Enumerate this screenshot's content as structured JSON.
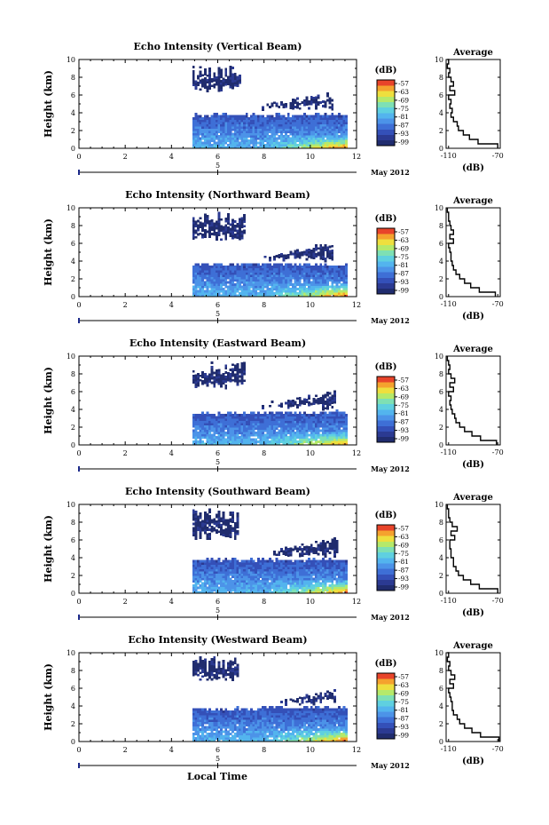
{
  "colors": {
    "colormap": [
      "#202c6e",
      "#2b3a92",
      "#3450b8",
      "#3e6fd6",
      "#4c93e8",
      "#53b4ee",
      "#5fd0e0",
      "#7ee0b4",
      "#b5e96a",
      "#eedf3e",
      "#f5a22e",
      "#e8442a"
    ],
    "background": "#ffffff",
    "axes": "#000000"
  },
  "figure": {
    "month_label": "May 2012",
    "xlabel": "Local Time"
  },
  "chart_data": [
    {
      "type": "heatmap",
      "title": "Echo Intensity (Vertical Beam)",
      "ylabel": "Height (km)",
      "xlim": [
        0,
        12
      ],
      "ylim": [
        0,
        10
      ],
      "x_ticks": [
        "0",
        "2",
        "4",
        "6",
        "8",
        "10",
        "12"
      ],
      "y_ticks": [
        "0",
        "2",
        "4",
        "6",
        "8",
        "10"
      ],
      "date_tick": "5",
      "data_start_time": 4.9,
      "data_end_time": 11.6,
      "colorbar": {
        "unit": "(dB)",
        "ticks": [
          "-57",
          "-63",
          "-69",
          "-75",
          "-81",
          "-87",
          "-93",
          "-99"
        ]
      },
      "layers": [
        {
          "t_start": 4.9,
          "t_end": 11.6,
          "z_bottom": 0,
          "z_top_start": 3.6,
          "z_top_end": 3.7,
          "level_low": 2,
          "level_high": 9
        },
        {
          "t_start": 4.9,
          "t_end": 7.0,
          "z_bottom": 6.3,
          "z_top": 9.3,
          "level_low": 0,
          "level_high": 1
        },
        {
          "t_start": 7.5,
          "t_end": 11.0,
          "z_bottom": 4.2,
          "z_top": 6.2,
          "level_low": 0,
          "level_high": 1
        }
      ],
      "average": {
        "title": "Average",
        "xlabel": "(dB)",
        "xlim": [
          -112,
          -68
        ],
        "x_ticks": [
          "-110",
          "-70"
        ],
        "heights": [
          0,
          0.5,
          1,
          1.5,
          2,
          2.5,
          3,
          3.5,
          4,
          4.5,
          5,
          5.5,
          6,
          6.5,
          7,
          7.5,
          8,
          8.5,
          9,
          9.5,
          10
        ],
        "values": [
          -70,
          -86,
          -93,
          -98,
          -102,
          -103,
          -106,
          -108,
          -107,
          -109,
          -108,
          -110,
          -105,
          -109,
          -106,
          -108,
          -110,
          -109,
          -111,
          -110,
          -111
        ]
      }
    },
    {
      "type": "heatmap",
      "title": "Echo Intensity (Northward Beam)",
      "ylabel": "Height (km)",
      "xlim": [
        0,
        12
      ],
      "ylim": [
        0,
        10
      ],
      "x_ticks": [
        "0",
        "2",
        "4",
        "6",
        "8",
        "10",
        "12"
      ],
      "y_ticks": [
        "0",
        "2",
        "4",
        "6",
        "8",
        "10"
      ],
      "date_tick": "5",
      "data_start_time": 4.9,
      "data_end_time": 11.6,
      "colorbar": {
        "unit": "(dB)",
        "ticks": [
          "-57",
          "-63",
          "-69",
          "-75",
          "-81",
          "-87",
          "-93",
          "-99"
        ]
      },
      "layers": [
        {
          "t_start": 4.9,
          "t_end": 11.6,
          "z_bottom": 0,
          "z_top_start": 3.6,
          "z_top_end": 3.5,
          "level_low": 2,
          "level_high": 9
        },
        {
          "t_start": 4.9,
          "t_end": 7.2,
          "z_bottom": 6.2,
          "z_top": 9.5,
          "level_low": 0,
          "level_high": 1
        },
        {
          "t_start": 8.0,
          "t_end": 11.0,
          "z_bottom": 3.8,
          "z_top": 6.2,
          "level_low": 0,
          "level_high": 1
        }
      ],
      "average": {
        "title": "Average",
        "xlabel": "(dB)",
        "xlim": [
          -112,
          -68
        ],
        "x_ticks": [
          "-110",
          "-70"
        ],
        "heights": [
          0,
          0.5,
          1,
          1.5,
          2,
          2.5,
          3,
          3.5,
          4,
          4.5,
          5,
          5.5,
          6,
          6.5,
          7,
          7.5,
          8,
          8.5,
          9,
          9.5,
          10
        ],
        "values": [
          -72,
          -85,
          -92,
          -97,
          -101,
          -104,
          -106,
          -107,
          -108,
          -108,
          -109,
          -110,
          -106,
          -109,
          -106,
          -108,
          -109,
          -110,
          -110,
          -111,
          -111
        ]
      }
    },
    {
      "type": "heatmap",
      "title": "Echo Intensity (Eastward Beam)",
      "ylabel": "Height (km)",
      "xlim": [
        0,
        12
      ],
      "ylim": [
        0,
        10
      ],
      "x_ticks": [
        "0",
        "2",
        "4",
        "6",
        "8",
        "10",
        "12"
      ],
      "y_ticks": [
        "0",
        "2",
        "4",
        "6",
        "8",
        "10"
      ],
      "date_tick": "5",
      "data_start_time": 4.9,
      "data_end_time": 11.6,
      "colorbar": {
        "unit": "(dB)",
        "ticks": [
          "-57",
          "-63",
          "-69",
          "-75",
          "-81",
          "-87",
          "-93",
          "-99"
        ]
      },
      "layers": [
        {
          "t_start": 4.9,
          "t_end": 11.6,
          "z_bottom": 0,
          "z_top_start": 3.4,
          "z_top_end": 3.6,
          "level_low": 2,
          "level_high": 9
        },
        {
          "t_start": 4.9,
          "t_end": 7.2,
          "z_bottom": 6.3,
          "z_top": 9.4,
          "level_low": 0,
          "level_high": 1
        },
        {
          "t_start": 7.8,
          "t_end": 11.1,
          "z_bottom": 3.9,
          "z_top": 6.1,
          "level_low": 0,
          "level_high": 1
        }
      ],
      "average": {
        "title": "Average",
        "xlabel": "(dB)",
        "xlim": [
          -112,
          -68
        ],
        "x_ticks": [
          "-110",
          "-70"
        ],
        "heights": [
          0,
          0.5,
          1,
          1.5,
          2,
          2.5,
          3,
          3.5,
          4,
          4.5,
          5,
          5.5,
          6,
          6.5,
          7,
          7.5,
          8,
          8.5,
          9,
          9.5,
          10
        ],
        "values": [
          -71,
          -84,
          -91,
          -97,
          -101,
          -104,
          -105,
          -107,
          -108,
          -109,
          -108,
          -110,
          -106,
          -109,
          -105,
          -108,
          -110,
          -109,
          -110,
          -111,
          -111
        ]
      }
    },
    {
      "type": "heatmap",
      "title": "Echo Intensity (Southward Beam)",
      "ylabel": "Height (km)",
      "xlim": [
        0,
        12
      ],
      "ylim": [
        0,
        10
      ],
      "x_ticks": [
        "0",
        "2",
        "4",
        "6",
        "8",
        "10",
        "12"
      ],
      "y_ticks": [
        "0",
        "2",
        "4",
        "6",
        "8",
        "10"
      ],
      "date_tick": "5",
      "data_start_time": 4.9,
      "data_end_time": 11.6,
      "colorbar": {
        "unit": "(dB)",
        "ticks": [
          "-57",
          "-63",
          "-69",
          "-75",
          "-81",
          "-87",
          "-93",
          "-99"
        ]
      },
      "layers": [
        {
          "t_start": 4.9,
          "t_end": 11.6,
          "z_bottom": 0,
          "z_top_start": 3.6,
          "z_top_end": 3.7,
          "level_low": 2,
          "level_high": 9
        },
        {
          "t_start": 4.9,
          "t_end": 6.9,
          "z_bottom": 6.0,
          "z_top": 9.6,
          "level_low": 0,
          "level_high": 1
        },
        {
          "t_start": 8.2,
          "t_end": 11.2,
          "z_bottom": 4.0,
          "z_top": 6.3,
          "level_low": 0,
          "level_high": 1
        }
      ],
      "average": {
        "title": "Average",
        "xlabel": "(dB)",
        "xlim": [
          -112,
          -68
        ],
        "x_ticks": [
          "-110",
          "-70"
        ],
        "heights": [
          0,
          0.5,
          1,
          1.5,
          2,
          2.5,
          3,
          3.5,
          4,
          4.5,
          5,
          5.5,
          6,
          6.5,
          7,
          7.5,
          8,
          8.5,
          9,
          9.5,
          10
        ],
        "values": [
          -70,
          -85,
          -92,
          -98,
          -102,
          -104,
          -106,
          -106,
          -108,
          -108,
          -109,
          -109,
          -105,
          -108,
          -103,
          -107,
          -109,
          -110,
          -110,
          -111,
          -111
        ]
      }
    },
    {
      "type": "heatmap",
      "title": "Echo Intensity (Westward Beam)",
      "ylabel": "Height (km)",
      "xlim": [
        0,
        12
      ],
      "ylim": [
        0,
        10
      ],
      "x_ticks": [
        "0",
        "2",
        "4",
        "6",
        "8",
        "10",
        "12"
      ],
      "y_ticks": [
        "0",
        "2",
        "4",
        "6",
        "8",
        "10"
      ],
      "date_tick": "5",
      "data_start_time": 4.9,
      "data_end_time": 11.6,
      "colorbar": {
        "unit": "(dB)",
        "ticks": [
          "-57",
          "-63",
          "-69",
          "-75",
          "-81",
          "-87",
          "-93",
          "-99"
        ]
      },
      "layers": [
        {
          "t_start": 4.9,
          "t_end": 11.6,
          "z_bottom": 0,
          "z_top_start": 3.5,
          "z_top_end": 3.8,
          "level_low": 2,
          "level_high": 9
        },
        {
          "t_start": 4.9,
          "t_end": 6.9,
          "z_bottom": 6.8,
          "z_top": 9.6,
          "level_low": 0,
          "level_high": 1
        },
        {
          "t_start": 8.6,
          "t_end": 11.1,
          "z_bottom": 4.0,
          "z_top": 6.0,
          "level_low": 0,
          "level_high": 1
        }
      ],
      "average": {
        "title": "Average",
        "xlabel": "(dB)",
        "xlim": [
          -112,
          -68
        ],
        "x_ticks": [
          "-110",
          "-70"
        ],
        "heights": [
          0,
          0.5,
          1,
          1.5,
          2,
          2.5,
          3,
          3.5,
          4,
          4.5,
          5,
          5.5,
          6,
          6.5,
          7,
          7.5,
          8,
          8.5,
          9,
          9.5,
          10
        ],
        "values": [
          -69,
          -84,
          -91,
          -97,
          -101,
          -103,
          -106,
          -107,
          -107,
          -108,
          -109,
          -110,
          -106,
          -109,
          -105,
          -108,
          -110,
          -109,
          -111,
          -110,
          -111
        ]
      }
    }
  ]
}
